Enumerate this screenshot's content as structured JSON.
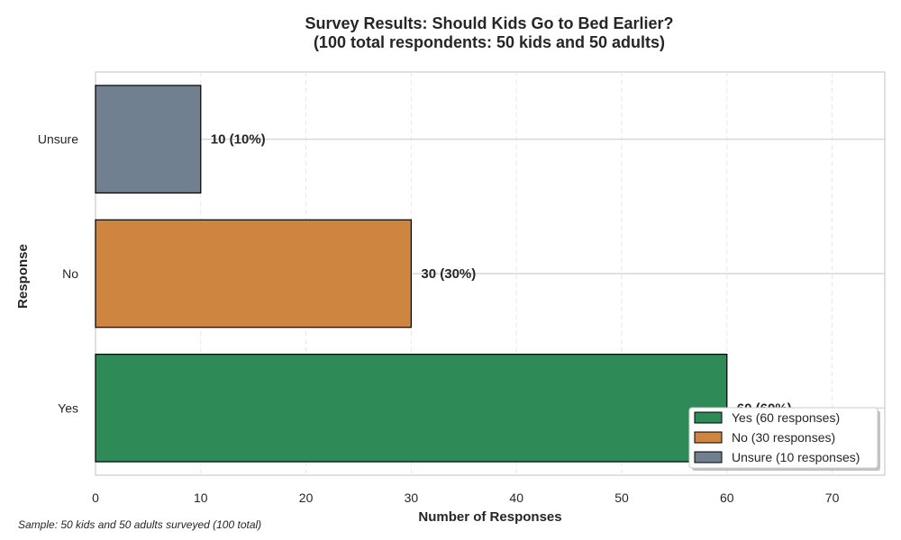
{
  "chart_data": {
    "type": "bar",
    "orientation": "horizontal",
    "title": [
      "Survey Results: Should Kids Go to Bed Earlier?",
      "(100 total respondents: 50 kids and 50 adults)"
    ],
    "xlabel": "Number of Responses",
    "ylabel": "Response",
    "xlim": [
      0,
      75
    ],
    "xticks": [
      0,
      10,
      20,
      30,
      40,
      50,
      60,
      70
    ],
    "categories": [
      "Yes",
      "No",
      "Unsure"
    ],
    "values": [
      60,
      30,
      10
    ],
    "colors": [
      "#2e8b57",
      "#cd853f",
      "#708090"
    ],
    "data_labels": [
      "60 (60%)",
      "30 (30%)",
      "10 (10%)"
    ],
    "legend": {
      "placement": "lower-right",
      "entries": [
        "Yes (60 responses)",
        "No (30 responses)",
        "Unsure (10 responses)"
      ]
    },
    "grid": true,
    "footnote": "Sample: 50 kids and 50 adults surveyed (100 total)"
  }
}
